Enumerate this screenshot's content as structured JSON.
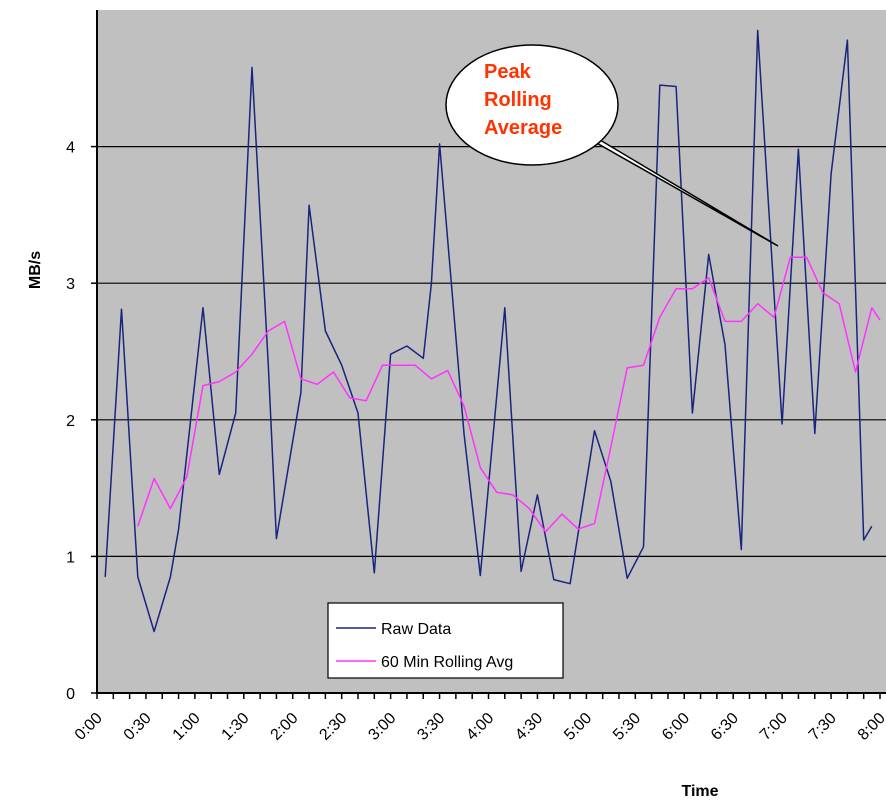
{
  "colors": {
    "plot_background": "#c0c0c0",
    "raw_series": "#1a237e",
    "rolling_series": "#ff33ff",
    "callout_text": "#ff3300",
    "gridline": "#000000"
  },
  "chart_data": {
    "type": "line",
    "title": "",
    "xlabel": "Time",
    "ylabel": "MB/s",
    "ylim": [
      0,
      5
    ],
    "xlim": [
      0,
      480
    ],
    "grid": "horizontal",
    "legend_placement": "bottom-center",
    "x_ticks": [
      {
        "value": 0,
        "label": "0:00"
      },
      {
        "value": 30,
        "label": "0:30"
      },
      {
        "value": 60,
        "label": "1:00"
      },
      {
        "value": 90,
        "label": "1:30"
      },
      {
        "value": 120,
        "label": "2:00"
      },
      {
        "value": 150,
        "label": "2:30"
      },
      {
        "value": 180,
        "label": "3:00"
      },
      {
        "value": 210,
        "label": "3:30"
      },
      {
        "value": 240,
        "label": "4:00"
      },
      {
        "value": 270,
        "label": "4:30"
      },
      {
        "value": 300,
        "label": "5:00"
      },
      {
        "value": 330,
        "label": "5:30"
      },
      {
        "value": 360,
        "label": "6:00"
      },
      {
        "value": 390,
        "label": "6:30"
      },
      {
        "value": 420,
        "label": "7:00"
      },
      {
        "value": 450,
        "label": "7:30"
      },
      {
        "value": 480,
        "label": "8:00"
      }
    ],
    "y_ticks": [
      {
        "value": 0,
        "label": "0"
      },
      {
        "value": 1,
        "label": "1"
      },
      {
        "value": 2,
        "label": "2"
      },
      {
        "value": 3,
        "label": "3"
      },
      {
        "value": 4,
        "label": "4"
      }
    ],
    "series": [
      {
        "name": "Raw Data",
        "color": "#1a237e",
        "points": [
          [
            5,
            0.85
          ],
          [
            15,
            2.81
          ],
          [
            25,
            0.85
          ],
          [
            35,
            0.45
          ],
          [
            45,
            0.85
          ],
          [
            50,
            1.2
          ],
          [
            65,
            2.82
          ],
          [
            75,
            1.6
          ],
          [
            85,
            2.05
          ],
          [
            95,
            4.58
          ],
          [
            105,
            2.4
          ],
          [
            110,
            1.13
          ],
          [
            125,
            2.2
          ],
          [
            130,
            3.57
          ],
          [
            140,
            2.65
          ],
          [
            150,
            2.4
          ],
          [
            160,
            2.05
          ],
          [
            170,
            0.88
          ],
          [
            180,
            2.48
          ],
          [
            190,
            2.54
          ],
          [
            200,
            2.45
          ],
          [
            205,
            3.0
          ],
          [
            210,
            4.02
          ],
          [
            225,
            1.9
          ],
          [
            235,
            0.86
          ],
          [
            250,
            2.82
          ],
          [
            260,
            0.89
          ],
          [
            270,
            1.45
          ],
          [
            280,
            0.83
          ],
          [
            290,
            0.8
          ],
          [
            305,
            1.92
          ],
          [
            315,
            1.55
          ],
          [
            325,
            0.84
          ],
          [
            335,
            1.07
          ],
          [
            345,
            4.45
          ],
          [
            355,
            4.44
          ],
          [
            365,
            2.05
          ],
          [
            375,
            3.21
          ],
          [
            385,
            2.55
          ],
          [
            395,
            1.05
          ],
          [
            405,
            4.85
          ],
          [
            420,
            1.97
          ],
          [
            430,
            3.98
          ],
          [
            440,
            1.9
          ],
          [
            450,
            3.8
          ],
          [
            460,
            4.78
          ],
          [
            470,
            1.12
          ],
          [
            475,
            1.22
          ]
        ]
      },
      {
        "name": "60 Min Rolling Avg",
        "color": "#ff33ff",
        "points": [
          [
            25,
            1.22
          ],
          [
            35,
            1.57
          ],
          [
            45,
            1.35
          ],
          [
            55,
            1.58
          ],
          [
            65,
            2.25
          ],
          [
            75,
            2.28
          ],
          [
            85,
            2.35
          ],
          [
            95,
            2.48
          ],
          [
            105,
            2.65
          ],
          [
            115,
            2.72
          ],
          [
            125,
            2.3
          ],
          [
            135,
            2.26
          ],
          [
            145,
            2.35
          ],
          [
            155,
            2.16
          ],
          [
            165,
            2.14
          ],
          [
            175,
            2.4
          ],
          [
            185,
            2.4
          ],
          [
            195,
            2.4
          ],
          [
            205,
            2.3
          ],
          [
            215,
            2.36
          ],
          [
            225,
            2.1
          ],
          [
            235,
            1.65
          ],
          [
            245,
            1.47
          ],
          [
            255,
            1.45
          ],
          [
            265,
            1.35
          ],
          [
            275,
            1.18
          ],
          [
            285,
            1.31
          ],
          [
            295,
            1.2
          ],
          [
            305,
            1.24
          ],
          [
            315,
            1.8
          ],
          [
            325,
            2.38
          ],
          [
            335,
            2.4
          ],
          [
            345,
            2.75
          ],
          [
            355,
            2.96
          ],
          [
            365,
            2.96
          ],
          [
            375,
            3.04
          ],
          [
            385,
            2.72
          ],
          [
            395,
            2.72
          ],
          [
            405,
            2.85
          ],
          [
            415,
            2.75
          ],
          [
            425,
            3.19
          ],
          [
            435,
            3.19
          ],
          [
            445,
            2.93
          ],
          [
            455,
            2.85
          ],
          [
            465,
            2.35
          ],
          [
            475,
            2.82
          ],
          [
            480,
            2.73
          ]
        ]
      }
    ],
    "annotations": [
      {
        "text_lines": [
          "Peak",
          "Rolling",
          "Average"
        ],
        "points_to": [
          422,
          3.19
        ]
      }
    ]
  }
}
